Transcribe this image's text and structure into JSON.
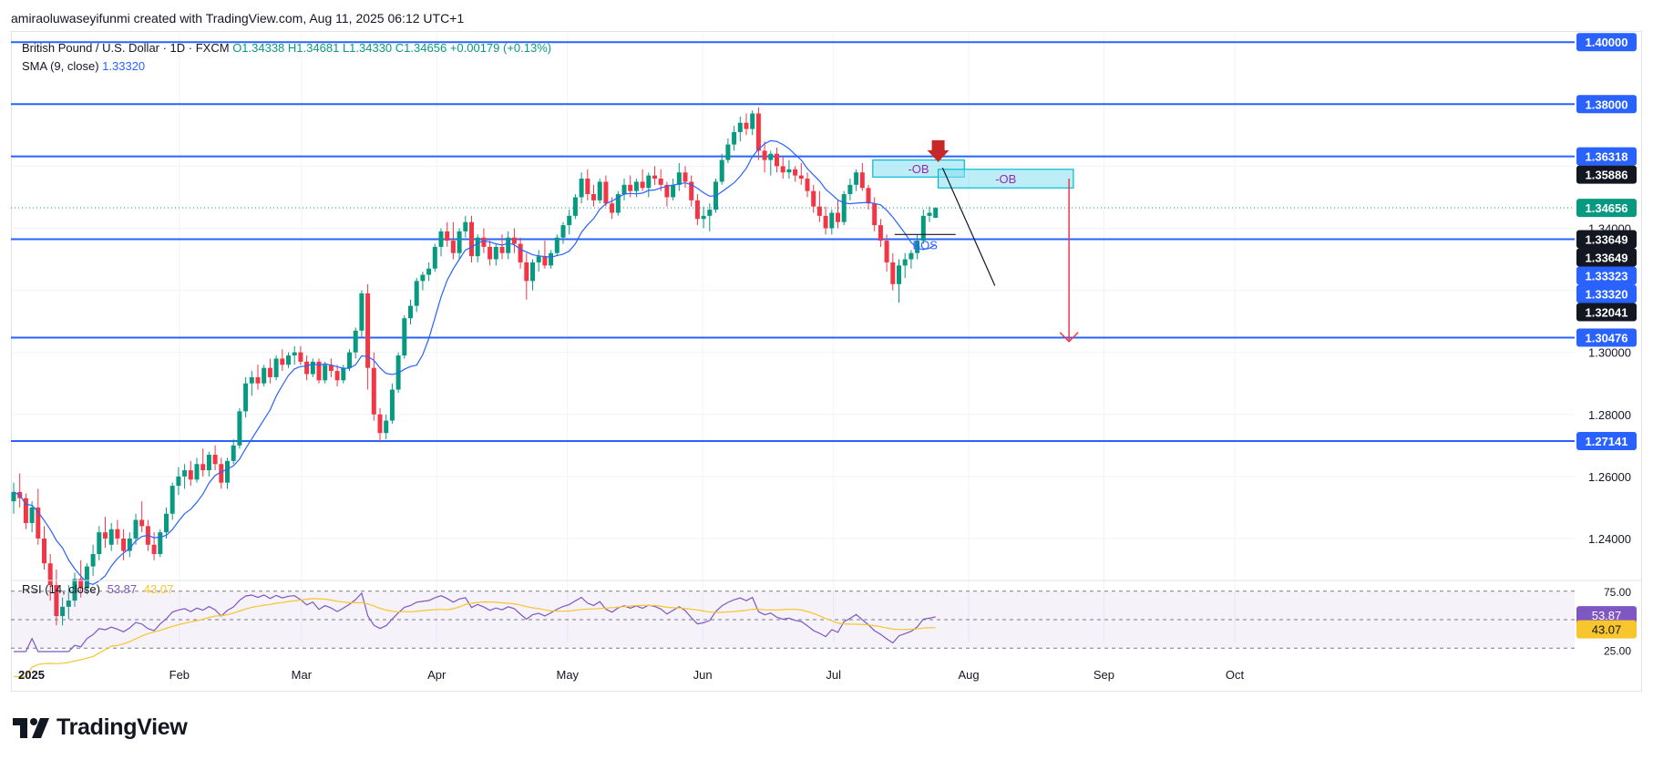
{
  "credit": "amiraoluwaseyifunmi created with TradingView.com, Aug 11, 2025 06:12 UTC+1",
  "brand": "TradingView",
  "legend": {
    "symbol": "British Pound / U.S. Dollar · 1D · FXCM",
    "open": "O1.34338",
    "high": "H1.34681",
    "low": "L1.34330",
    "close": "C1.34656",
    "change": "+0.00179 (+0.13%)",
    "sma_label": "SMA (9, close)",
    "sma_value": "1.33320",
    "rsi_label": "RSI (14, close)",
    "rsi_value": "53.87",
    "rsi_ma_value": "43.07"
  },
  "colors": {
    "up": "#089981",
    "down": "#f23645",
    "level": "#2962ff",
    "sma": "#2962ff",
    "rsi": "#7e57c2",
    "rsi_ma": "#f7c52c",
    "ob_fill": "#86dff0",
    "ob_stroke": "#00bcd4",
    "target_arrow": "#f23645",
    "marker": "#c62828"
  },
  "chart_data": {
    "type": "candlestick",
    "title": "British Pound / U.S. Dollar · 1D · FXCM",
    "y_axis_side": "right",
    "ylim": [
      1.23,
      1.403
    ],
    "y_ticks": [
      "1.24000",
      "1.26000",
      "1.28000",
      "1.30000",
      "1.34000"
    ],
    "x_ticks": [
      "2025",
      "Feb",
      "Mar",
      "Apr",
      "May",
      "Jun",
      "Jul",
      "Aug",
      "Sep",
      "Oct"
    ],
    "horizontal_levels": [
      1.4,
      1.38,
      1.36318,
      1.33649,
      1.30476,
      1.27141
    ],
    "current_price": 1.34656,
    "price_labels": [
      {
        "value": 1.4,
        "text": "1.40000",
        "style": "level"
      },
      {
        "value": 1.38,
        "text": "1.38000",
        "style": "level"
      },
      {
        "value": 1.36318,
        "text": "1.36318",
        "style": "level"
      },
      {
        "value": 1.35886,
        "text": "1.35886",
        "style": "dark"
      },
      {
        "value": 1.34656,
        "text": "1.34656",
        "style": "price"
      },
      {
        "value": 1.33649,
        "text": "1.33649",
        "style": "dark"
      },
      {
        "value": 1.33649,
        "text": "1.33649",
        "style": "dark"
      },
      {
        "value": 1.33323,
        "text": "1.33323",
        "style": "level"
      },
      {
        "value": 1.3332,
        "text": "1.33320",
        "style": "level"
      },
      {
        "value": 1.32041,
        "text": "1.32041",
        "style": "dark"
      },
      {
        "value": 1.30476,
        "text": "1.30476",
        "style": "level"
      },
      {
        "value": 1.27141,
        "text": "1.27141",
        "style": "level"
      }
    ],
    "annotations": [
      {
        "type": "order_block",
        "label": "-OB",
        "x_start": "2025-07-10",
        "x_end": "2025-07-31",
        "y_top": 1.362,
        "y_bottom": 1.3565
      },
      {
        "type": "order_block",
        "label": "-OB",
        "x_start": "2025-07-25",
        "x_end": "2025-08-25",
        "y_top": 1.359,
        "y_bottom": 1.353
      },
      {
        "type": "bos",
        "label": "BOS",
        "x_start": "2025-07-15",
        "x_end": "2025-07-29",
        "y": 1.338
      },
      {
        "type": "arrow_down",
        "x": "2025-08-24",
        "from": 1.356,
        "to": 1.3035
      },
      {
        "type": "marker_down",
        "x": "2025-07-25",
        "y": 1.3625
      }
    ],
    "candles_ohlc": [
      [
        1.252,
        1.258,
        1.248,
        1.255
      ],
      [
        1.255,
        1.261,
        1.25,
        1.253
      ],
      [
        1.253,
        1.2545,
        1.243,
        1.245
      ],
      [
        1.245,
        1.252,
        1.242,
        1.25
      ],
      [
        1.25,
        1.256,
        1.238,
        1.24
      ],
      [
        1.24,
        1.244,
        1.23,
        1.232
      ],
      [
        1.232,
        1.235,
        1.22,
        1.225
      ],
      [
        1.225,
        1.23,
        1.212,
        1.215
      ],
      [
        1.215,
        1.221,
        1.212,
        1.218
      ],
      [
        1.218,
        1.225,
        1.214,
        1.22
      ],
      [
        1.22,
        1.229,
        1.218,
        1.227
      ],
      [
        1.227,
        1.233,
        1.221,
        1.224
      ],
      [
        1.224,
        1.232,
        1.222,
        1.231
      ],
      [
        1.231,
        1.238,
        1.228,
        1.235
      ],
      [
        1.235,
        1.244,
        1.233,
        1.242
      ],
      [
        1.242,
        1.247,
        1.237,
        1.24
      ],
      [
        1.238,
        1.245,
        1.236,
        1.243
      ],
      [
        1.243,
        1.246,
        1.238,
        1.24
      ],
      [
        1.24,
        1.243,
        1.233,
        1.236
      ],
      [
        1.236,
        1.242,
        1.234,
        1.24
      ],
      [
        1.24,
        1.248,
        1.238,
        1.246
      ],
      [
        1.246,
        1.252,
        1.242,
        1.244
      ],
      [
        1.244,
        1.246,
        1.236,
        1.238
      ],
      [
        1.238,
        1.242,
        1.233,
        1.235
      ],
      [
        1.235,
        1.243,
        1.234,
        1.242
      ],
      [
        1.242,
        1.25,
        1.24,
        1.248
      ],
      [
        1.248,
        1.258,
        1.246,
        1.257
      ],
      [
        1.257,
        1.263,
        1.254,
        1.26
      ],
      [
        1.26,
        1.264,
        1.256,
        1.262
      ],
      [
        1.262,
        1.265,
        1.257,
        1.259
      ],
      [
        1.259,
        1.266,
        1.258,
        1.264
      ],
      [
        1.264,
        1.269,
        1.26,
        1.262
      ],
      [
        1.262,
        1.268,
        1.26,
        1.267
      ],
      [
        1.267,
        1.27,
        1.262,
        1.264
      ],
      [
        1.264,
        1.266,
        1.256,
        1.258
      ],
      [
        1.258,
        1.266,
        1.256,
        1.265
      ],
      [
        1.265,
        1.272,
        1.264,
        1.27
      ],
      [
        1.27,
        1.282,
        1.269,
        1.281
      ],
      [
        1.281,
        1.292,
        1.279,
        1.29
      ],
      [
        1.29,
        1.294,
        1.286,
        1.292
      ],
      [
        1.292,
        1.296,
        1.288,
        1.29
      ],
      [
        1.29,
        1.296,
        1.289,
        1.295
      ],
      [
        1.295,
        1.298,
        1.29,
        1.292
      ],
      [
        1.292,
        1.299,
        1.291,
        1.298
      ],
      [
        1.298,
        1.301,
        1.294,
        1.296
      ],
      [
        1.296,
        1.3,
        1.295,
        1.299
      ],
      [
        1.299,
        1.302,
        1.296,
        1.3
      ],
      [
        1.3,
        1.302,
        1.296,
        1.297
      ],
      [
        1.297,
        1.299,
        1.291,
        1.293
      ],
      [
        1.293,
        1.298,
        1.292,
        1.297
      ],
      [
        1.297,
        1.298,
        1.29,
        1.291
      ],
      [
        1.291,
        1.297,
        1.29,
        1.296
      ],
      [
        1.296,
        1.298,
        1.292,
        1.294
      ],
      [
        1.294,
        1.296,
        1.289,
        1.291
      ],
      [
        1.291,
        1.296,
        1.29,
        1.295
      ],
      [
        1.295,
        1.301,
        1.294,
        1.3
      ],
      [
        1.3,
        1.308,
        1.298,
        1.307
      ],
      [
        1.307,
        1.32,
        1.305,
        1.319
      ],
      [
        1.319,
        1.322,
        1.288,
        1.295
      ],
      [
        1.295,
        1.3,
        1.278,
        1.28
      ],
      [
        1.28,
        1.282,
        1.271,
        1.274
      ],
      [
        1.274,
        1.28,
        1.272,
        1.278
      ],
      [
        1.278,
        1.29,
        1.277,
        1.288
      ],
      [
        1.288,
        1.3,
        1.287,
        1.299
      ],
      [
        1.299,
        1.312,
        1.298,
        1.311
      ],
      [
        1.311,
        1.317,
        1.309,
        1.315
      ],
      [
        1.315,
        1.324,
        1.313,
        1.323
      ],
      [
        1.323,
        1.326,
        1.32,
        1.325
      ],
      [
        1.325,
        1.329,
        1.323,
        1.327
      ],
      [
        1.327,
        1.335,
        1.326,
        1.334
      ],
      [
        1.334,
        1.34,
        1.331,
        1.339
      ],
      [
        1.339,
        1.342,
        1.334,
        1.336
      ],
      [
        1.336,
        1.342,
        1.33,
        1.332
      ],
      [
        1.332,
        1.34,
        1.33,
        1.339
      ],
      [
        1.339,
        1.344,
        1.337,
        1.342
      ],
      [
        1.342,
        1.344,
        1.329,
        1.331
      ],
      [
        1.331,
        1.338,
        1.329,
        1.337
      ],
      [
        1.337,
        1.34,
        1.332,
        1.334
      ],
      [
        1.334,
        1.336,
        1.328,
        1.33
      ],
      [
        1.33,
        1.335,
        1.328,
        1.334
      ],
      [
        1.334,
        1.338,
        1.33,
        1.332
      ],
      [
        1.332,
        1.339,
        1.33,
        1.337
      ],
      [
        1.337,
        1.34,
        1.332,
        1.335
      ],
      [
        1.335,
        1.337,
        1.327,
        1.329
      ],
      [
        1.329,
        1.332,
        1.317,
        1.323
      ],
      [
        1.323,
        1.33,
        1.32,
        1.329
      ],
      [
        1.329,
        1.333,
        1.326,
        1.331
      ],
      [
        1.331,
        1.336,
        1.327,
        1.328
      ],
      [
        1.328,
        1.333,
        1.327,
        1.332
      ],
      [
        1.332,
        1.338,
        1.331,
        1.337
      ],
      [
        1.337,
        1.342,
        1.335,
        1.341
      ],
      [
        1.341,
        1.346,
        1.338,
        1.344
      ],
      [
        1.344,
        1.351,
        1.343,
        1.35
      ],
      [
        1.35,
        1.358,
        1.348,
        1.356
      ],
      [
        1.356,
        1.359,
        1.349,
        1.351
      ],
      [
        1.351,
        1.354,
        1.347,
        1.349
      ],
      [
        1.349,
        1.356,
        1.348,
        1.355
      ],
      [
        1.355,
        1.357,
        1.347,
        1.348
      ],
      [
        1.348,
        1.35,
        1.343,
        1.345
      ],
      [
        1.345,
        1.352,
        1.344,
        1.351
      ],
      [
        1.351,
        1.356,
        1.349,
        1.354
      ],
      [
        1.354,
        1.357,
        1.35,
        1.352
      ],
      [
        1.352,
        1.356,
        1.35,
        1.355
      ],
      [
        1.355,
        1.359,
        1.352,
        1.353
      ],
      [
        1.353,
        1.358,
        1.35,
        1.357
      ],
      [
        1.357,
        1.36,
        1.354,
        1.356
      ],
      [
        1.356,
        1.359,
        1.352,
        1.354
      ],
      [
        1.354,
        1.355,
        1.347,
        1.35
      ],
      [
        1.35,
        1.356,
        1.349,
        1.354
      ],
      [
        1.354,
        1.361,
        1.352,
        1.358
      ],
      [
        1.358,
        1.36,
        1.353,
        1.355
      ],
      [
        1.355,
        1.357,
        1.347,
        1.349
      ],
      [
        1.349,
        1.351,
        1.341,
        1.343
      ],
      [
        1.343,
        1.347,
        1.34,
        1.344
      ],
      [
        1.344,
        1.348,
        1.339,
        1.346
      ],
      [
        1.346,
        1.356,
        1.345,
        1.355
      ],
      [
        1.355,
        1.364,
        1.354,
        1.362
      ],
      [
        1.362,
        1.369,
        1.361,
        1.367
      ],
      [
        1.367,
        1.373,
        1.365,
        1.371
      ],
      [
        1.371,
        1.376,
        1.368,
        1.374
      ],
      [
        1.374,
        1.377,
        1.37,
        1.372
      ],
      [
        1.372,
        1.378,
        1.37,
        1.377
      ],
      [
        1.377,
        1.379,
        1.362,
        1.365
      ],
      [
        1.365,
        1.368,
        1.358,
        1.362
      ],
      [
        1.362,
        1.365,
        1.357,
        1.364
      ],
      [
        1.364,
        1.366,
        1.358,
        1.36
      ],
      [
        1.36,
        1.363,
        1.356,
        1.358
      ],
      [
        1.358,
        1.362,
        1.356,
        1.359
      ],
      [
        1.359,
        1.36,
        1.355,
        1.357
      ],
      [
        1.357,
        1.361,
        1.354,
        1.356
      ],
      [
        1.356,
        1.358,
        1.35,
        1.352
      ],
      [
        1.352,
        1.354,
        1.345,
        1.347
      ],
      [
        1.347,
        1.352,
        1.342,
        1.344
      ],
      [
        1.344,
        1.347,
        1.338,
        1.34
      ],
      [
        1.34,
        1.346,
        1.338,
        1.345
      ],
      [
        1.345,
        1.349,
        1.34,
        1.342
      ],
      [
        1.342,
        1.352,
        1.341,
        1.351
      ],
      [
        1.351,
        1.356,
        1.349,
        1.354
      ],
      [
        1.354,
        1.359,
        1.352,
        1.358
      ],
      [
        1.358,
        1.361,
        1.352,
        1.353
      ],
      [
        1.353,
        1.354,
        1.346,
        1.348
      ],
      [
        1.348,
        1.35,
        1.339,
        1.341
      ],
      [
        1.341,
        1.343,
        1.334,
        1.336
      ],
      [
        1.336,
        1.338,
        1.326,
        1.329
      ],
      [
        1.329,
        1.332,
        1.32,
        1.322
      ],
      [
        1.322,
        1.33,
        1.316,
        1.328
      ],
      [
        1.328,
        1.332,
        1.324,
        1.33
      ],
      [
        1.33,
        1.333,
        1.327,
        1.332
      ],
      [
        1.332,
        1.338,
        1.33,
        1.336
      ],
      [
        1.336,
        1.346,
        1.335,
        1.344
      ],
      [
        1.344,
        1.347,
        1.342,
        1.345
      ],
      [
        1.34338,
        1.34681,
        1.3433,
        1.34656
      ]
    ],
    "sma": {
      "period": 9,
      "source": "close",
      "last": 1.3332
    },
    "rsi": {
      "period": 14,
      "value": 53.87,
      "ma_value": 43.07,
      "ylim": [
        22,
        78
      ],
      "levels": [
        25,
        50,
        75
      ],
      "tick_labels": [
        "75.00",
        "25.00"
      ]
    }
  }
}
